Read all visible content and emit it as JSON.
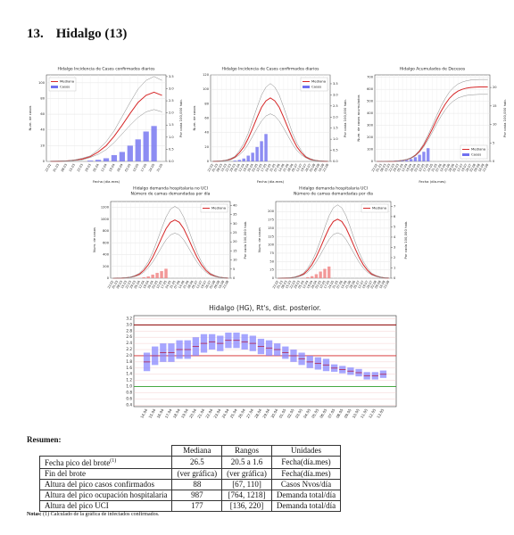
{
  "section": {
    "number": "13.",
    "title": "Hidalgo (13)"
  },
  "charts": [
    {
      "type": "projection",
      "title": "Hidalgo Incidencia de Casos confirmados diarios",
      "ylabel": "Num. de casos",
      "y2label": "Por cada 100,000 hab.",
      "xlabel": "Fecha (día.mes)",
      "legend": "upper-left",
      "grid": true,
      "categories": [
        "23.02",
        "01.03",
        "08.03",
        "15.03",
        "22.03",
        "29.03",
        "05.04",
        "12.04",
        "19.04",
        "26.04",
        "03.05",
        "10.05",
        "17.05",
        "24.05",
        "31.05"
      ],
      "ylim": [
        0,
        110
      ],
      "yticks": [
        0,
        20,
        40,
        60,
        80,
        100
      ],
      "y2lim": [
        0,
        3.57
      ],
      "y2ticks": [
        {
          "value": 0,
          "label": "0.0"
        },
        0.5,
        {
          "value": 1,
          "label": "1.0"
        },
        1.5,
        {
          "value": 2,
          "label": "2.0"
        },
        2.5,
        {
          "value": 3,
          "label": "3.0"
        },
        3.5
      ],
      "series": [
        {
          "name": "Mediana",
          "color": "#d62728",
          "values": [
            0.1,
            0.3,
            0.6,
            1.5,
            3,
            6,
            12,
            20,
            32,
            46,
            61,
            75,
            84,
            88,
            84
          ]
        },
        {
          "color": "#888888",
          "values": [
            0.1,
            0.4,
            0.7,
            1.8,
            4,
            7,
            15,
            25,
            39,
            57,
            75,
            92,
            103,
            108,
            103
          ]
        },
        {
          "color": "#888888",
          "values": [
            0.1,
            0.2,
            0.5,
            1.1,
            2,
            5,
            9,
            15,
            24,
            35,
            46,
            56,
            63,
            66,
            63
          ]
        },
        {
          "name": "Casos",
          "kind": "bar",
          "color": "#7070f0",
          "values": [
            0,
            0,
            0,
            0,
            0,
            1,
            2,
            4,
            8,
            12,
            20,
            28,
            38,
            45,
            null
          ]
        }
      ]
    },
    {
      "type": "projection",
      "title": "Hidalgo Incidencia de Casos confirmados diarios",
      "ylabel": "Num. de casos",
      "y2label": "Por cada 100,000 hab.",
      "xlabel": "Fecha (día.mes)",
      "legend": "upper-right",
      "grid": true,
      "categories": [
        "23.02",
        "01.03",
        "08.03",
        "15.03",
        "22.03",
        "29.03",
        "05.04",
        "12.04",
        "19.04",
        "26.04",
        "03.05",
        "10.05",
        "17.05",
        "24.05",
        "31.05",
        "07.06",
        "14.06",
        "21.06",
        "28.06",
        "05.07",
        "12.07",
        "19.07",
        "26.07",
        "02.08",
        "09.08",
        "16.08",
        "23.08"
      ],
      "ylim": [
        0,
        120
      ],
      "yticks": [
        0,
        20,
        40,
        60,
        80,
        100,
        120
      ],
      "y2lim": [
        0,
        3.9
      ],
      "y2ticks": [
        {
          "value": 0,
          "label": "0.0"
        },
        0.5,
        {
          "value": 1,
          "label": "1.0"
        },
        1.5,
        {
          "value": 2,
          "label": "2.0"
        },
        2.5,
        {
          "value": 3,
          "label": "3.0"
        },
        3.5
      ],
      "series": [
        {
          "name": "Mediana",
          "color": "#d62728",
          "values": [
            0.1,
            0.3,
            0.6,
            1.5,
            3,
            6,
            12,
            20,
            32,
            46,
            61,
            75,
            84,
            88,
            84,
            75,
            61,
            46,
            32,
            20,
            12,
            6,
            3,
            1.5,
            0.6,
            0.3,
            0.1
          ]
        },
        {
          "color": "#888888",
          "values": [
            0.1,
            0.4,
            0.7,
            1.8,
            4,
            7,
            15,
            25,
            39,
            57,
            75,
            92,
            103,
            108,
            103,
            92,
            75,
            57,
            39,
            25,
            15,
            7,
            4,
            1.8,
            0.7,
            0.4,
            0.1
          ]
        },
        {
          "color": "#888888",
          "values": [
            0.1,
            0.2,
            0.5,
            1.1,
            2,
            5,
            9,
            15,
            24,
            35,
            46,
            56,
            63,
            66,
            63,
            56,
            46,
            35,
            24,
            15,
            9,
            5,
            2,
            1.1,
            0.5,
            0.2,
            0.1
          ]
        },
        {
          "name": "Casos",
          "kind": "bar",
          "color": "#7070f0",
          "values": [
            0,
            0,
            0,
            0,
            0,
            1,
            2,
            4,
            8,
            12,
            20,
            28,
            38,
            null,
            null,
            null,
            null,
            null,
            null,
            null,
            null,
            null,
            null,
            null,
            null,
            null,
            null
          ]
        }
      ]
    },
    {
      "type": "projection",
      "title": "Hidalgo Acumulados de Decesos",
      "ylabel": "Num. de casos acumulados",
      "y2label": "Por cada 100,000 hab.",
      "xlabel": "Fecha (día.mes)",
      "legend": "lower-right",
      "grid": true,
      "categories": [
        "23.02",
        "01.03",
        "08.03",
        "15.03",
        "22.03",
        "29.03",
        "05.04",
        "12.04",
        "19.04",
        "26.04",
        "03.05",
        "10.05",
        "17.05",
        "24.05",
        "31.05",
        "07.06",
        "14.06",
        "21.06",
        "28.06",
        "05.07",
        "12.07",
        "19.07",
        "26.07",
        "02.08",
        "09.08",
        "16.08",
        "23.08"
      ],
      "ylim": [
        0,
        720
      ],
      "yticks": [
        0,
        100,
        200,
        300,
        400,
        500,
        600,
        700
      ],
      "y2lim": [
        0,
        23.4
      ],
      "y2ticks": [
        0,
        5,
        10,
        15,
        20
      ],
      "series": [
        {
          "name": "Mediana",
          "color": "#d62728",
          "values": [
            0,
            0,
            0,
            1,
            2,
            4,
            8,
            15,
            28,
            50,
            85,
            135,
            200,
            270,
            345,
            415,
            475,
            525,
            560,
            585,
            600,
            610,
            615,
            618,
            620,
            620,
            620
          ]
        },
        {
          "color": "#888888",
          "values": [
            0,
            0,
            0,
            1,
            2,
            5,
            9,
            17,
            31,
            55,
            94,
            149,
            220,
            297,
            380,
            457,
            523,
            578,
            616,
            644,
            660,
            671,
            677,
            680,
            682,
            682,
            682
          ]
        },
        {
          "color": "#888888",
          "values": [
            0,
            0,
            0,
            1,
            2,
            4,
            7,
            14,
            25,
            45,
            77,
            122,
            180,
            243,
            311,
            374,
            428,
            473,
            504,
            527,
            540,
            549,
            554,
            556,
            558,
            558,
            558
          ]
        },
        {
          "name": "Casos",
          "kind": "bar",
          "color": "#7070f0",
          "values": [
            0,
            0,
            0,
            0,
            1,
            2,
            5,
            10,
            20,
            35,
            55,
            80,
            110,
            null,
            null,
            null,
            null,
            null,
            null,
            null,
            null,
            null,
            null,
            null,
            null,
            null,
            null
          ]
        }
      ]
    },
    {
      "type": "projection",
      "title": "Hidalgo demanda hospitalaria no UCI",
      "subtitle": "Número de camas demandadas por día",
      "ylabel": "Num. de casos",
      "y2label": "Por cada 100,000 hab.",
      "legend": "upper-right",
      "grid": true,
      "categories": [
        "23.02",
        "01.03",
        "08.03",
        "15.03",
        "22.03",
        "29.03",
        "05.04",
        "12.04",
        "19.04",
        "26.04",
        "03.05",
        "10.05",
        "17.05",
        "24.05",
        "31.05",
        "07.06",
        "14.06",
        "21.06",
        "28.06",
        "05.07",
        "12.07",
        "19.07",
        "26.07",
        "02.08",
        "09.08",
        "16.08",
        "23.08"
      ],
      "ylim": [
        0,
        1300
      ],
      "yticks": [
        0,
        200,
        400,
        600,
        800,
        1000,
        1200
      ],
      "y2lim": [
        0,
        42.2
      ],
      "y2ticks": [
        0,
        5,
        10,
        15,
        20,
        25,
        30,
        35,
        40
      ],
      "series": [
        {
          "name": "Mediana",
          "color": "#d62728",
          "values": [
            0.5,
            1,
            3,
            7,
            17,
            37,
            69,
            133,
            227,
            355,
            513,
            681,
            839,
            948,
            987,
            948,
            839,
            681,
            513,
            355,
            227,
            133,
            69,
            37,
            17,
            7,
            3
          ]
        },
        {
          "color": "#888888",
          "values": [
            0.6,
            1,
            4,
            9,
            21,
            46,
            85,
            164,
            280,
            438,
            633,
            840,
            1035,
            1170,
            1218,
            1170,
            1035,
            840,
            633,
            438,
            280,
            164,
            85,
            46,
            21,
            9,
            4
          ]
        },
        {
          "color": "#888888",
          "values": [
            0.4,
            1,
            2,
            5,
            13,
            29,
            53,
            103,
            176,
            275,
            397,
            527,
            649,
            734,
            764,
            734,
            649,
            527,
            397,
            275,
            176,
            103,
            53,
            29,
            13,
            5,
            2
          ]
        },
        {
          "kind": "bar",
          "color": "#f08080",
          "values": [
            0,
            0,
            0,
            0,
            0,
            2,
            5,
            15,
            30,
            60,
            90,
            120,
            160,
            null,
            null,
            null,
            null,
            null,
            null,
            null,
            null,
            null,
            null,
            null,
            null,
            null,
            null
          ]
        }
      ]
    },
    {
      "type": "projection",
      "title": "Hidalgo demanda hospitalaria UCI",
      "subtitle": "Número de camas demandadas por día",
      "ylabel": "Num. de casos",
      "y2label": "Por cada 100,000 hab.",
      "legend": "upper-right",
      "grid": true,
      "categories": [
        "23.02",
        "01.03",
        "08.03",
        "15.03",
        "22.03",
        "29.03",
        "05.04",
        "12.04",
        "19.04",
        "26.04",
        "03.05",
        "10.05",
        "17.05",
        "24.05",
        "31.05",
        "07.06",
        "14.06",
        "21.06",
        "28.06",
        "05.07",
        "12.07",
        "19.07",
        "26.07",
        "02.08",
        "09.08",
        "16.08",
        "23.08"
      ],
      "ylim": [
        0,
        230
      ],
      "yticks": [
        0,
        25,
        50,
        75,
        100,
        125,
        150,
        175,
        200
      ],
      "y2lim": [
        0,
        7.47
      ],
      "y2ticks": [
        0,
        1,
        2,
        3,
        4,
        5,
        6,
        7
      ],
      "series": [
        {
          "name": "Mediana",
          "color": "#d62728",
          "values": [
            0.1,
            0.2,
            0.5,
            1,
            3,
            7,
            12,
            24,
            41,
            64,
            92,
            122,
            150,
            170,
            177,
            170,
            150,
            122,
            92,
            64,
            41,
            24,
            12,
            7,
            3,
            1,
            0.5
          ]
        },
        {
          "color": "#888888",
          "values": [
            0.1,
            0.2,
            0.7,
            1.5,
            4,
            8,
            15,
            30,
            51,
            79,
            114,
            152,
            187,
            211,
            220,
            211,
            187,
            152,
            114,
            79,
            51,
            30,
            15,
            8,
            4,
            1.5,
            0.7
          ]
        },
        {
          "color": "#888888",
          "values": [
            0.1,
            0.1,
            0.4,
            1,
            2.3,
            5,
            10,
            18,
            31,
            49,
            71,
            94,
            116,
            131,
            136,
            131,
            116,
            94,
            71,
            49,
            31,
            18,
            10,
            5,
            2.3,
            1,
            0.4
          ]
        },
        {
          "kind": "bar",
          "color": "#f08080",
          "values": [
            0,
            0,
            0,
            0,
            0,
            0,
            1,
            3,
            6,
            12,
            20,
            28,
            35,
            null,
            null,
            null,
            null,
            null,
            null,
            null,
            null,
            null,
            null,
            null,
            null,
            null,
            null
          ]
        }
      ]
    },
    {
      "type": "box",
      "title": "Hidalgo (HG), Rt's, dist. posterior.",
      "grid": true,
      "color": "#8080ff",
      "median_color": "#b03060",
      "categories": [
        "14.04",
        "15.04",
        "16.04",
        "17.04",
        "18.04",
        "19.04",
        "20.04",
        "21.04",
        "22.04",
        "23.04",
        "24.04",
        "25.04",
        "26.04",
        "27.04",
        "28.04",
        "29.04",
        "30.04",
        "01.05",
        "02.05",
        "03.05",
        "04.05",
        "05.05",
        "06.05",
        "07.05",
        "08.05",
        "09.05",
        "10.05",
        "11.05",
        "12.05",
        "13.05"
      ],
      "ylim": [
        0.35,
        3.3
      ],
      "yticks": [
        0.4,
        0.6,
        0.8,
        {
          "value": 1,
          "label": "1.0"
        },
        1.2,
        1.4,
        1.6,
        1.8,
        {
          "value": 2,
          "label": "2.0"
        },
        2.2,
        2.4,
        2.6,
        2.8,
        {
          "value": 3,
          "label": "3.0"
        },
        3.2
      ],
      "hlines": [
        {
          "value": 3,
          "color": "#8b0000"
        },
        {
          "value": 2,
          "color": "#d62728"
        },
        {
          "value": 1,
          "color": "#2ca02c"
        }
      ],
      "median": [
        1.8,
        2.0,
        2.1,
        2.1,
        2.2,
        2.2,
        2.3,
        2.4,
        2.45,
        2.4,
        2.5,
        2.5,
        2.45,
        2.4,
        2.3,
        2.25,
        2.2,
        2.1,
        2.0,
        1.9,
        1.8,
        1.75,
        1.7,
        1.6,
        1.55,
        1.5,
        1.45,
        1.35,
        1.35,
        1.4
      ],
      "low": [
        1.5,
        1.7,
        1.8,
        1.8,
        1.9,
        1.9,
        2.0,
        2.1,
        2.2,
        2.15,
        2.25,
        2.25,
        2.2,
        2.15,
        2.05,
        2.0,
        2.0,
        1.9,
        1.8,
        1.7,
        1.6,
        1.55,
        1.5,
        1.48,
        1.43,
        1.38,
        1.33,
        1.23,
        1.23,
        1.28
      ],
      "high": [
        2.1,
        2.3,
        2.4,
        2.4,
        2.5,
        2.5,
        2.6,
        2.7,
        2.7,
        2.65,
        2.75,
        2.75,
        2.7,
        2.65,
        2.55,
        2.5,
        2.4,
        2.3,
        2.2,
        2.1,
        2.0,
        1.95,
        1.9,
        1.72,
        1.67,
        1.62,
        1.57,
        1.47,
        1.47,
        1.52
      ]
    }
  ],
  "summary": {
    "title": "Resumen:",
    "header": [
      "Mediana",
      "Rangos",
      "Unidades"
    ],
    "first_row_mark": "(1)",
    "rows": [
      [
        "Fecha pico del brote",
        "26.5",
        "20.5 a 1.6",
        "Fecha(día.mes)"
      ],
      [
        "Fin del brote",
        "(ver gráfica)",
        "(ver gráfica)",
        "Fecha(día.mes)"
      ],
      [
        "Altura del pico casos confirmados",
        "88",
        "[67, 110]",
        "Casos Nvos/día"
      ],
      [
        "Altura del pico ocupación hospitalaria",
        "987",
        "[764, 1218]",
        "Demanda total/día"
      ],
      [
        "Altura del pico UCI",
        "177",
        "[136, 220]",
        "Demanda total/día"
      ]
    ],
    "notes_label": "Notas:",
    "notes": "(1) Calculado de la gráfica de infectados confirmados."
  }
}
